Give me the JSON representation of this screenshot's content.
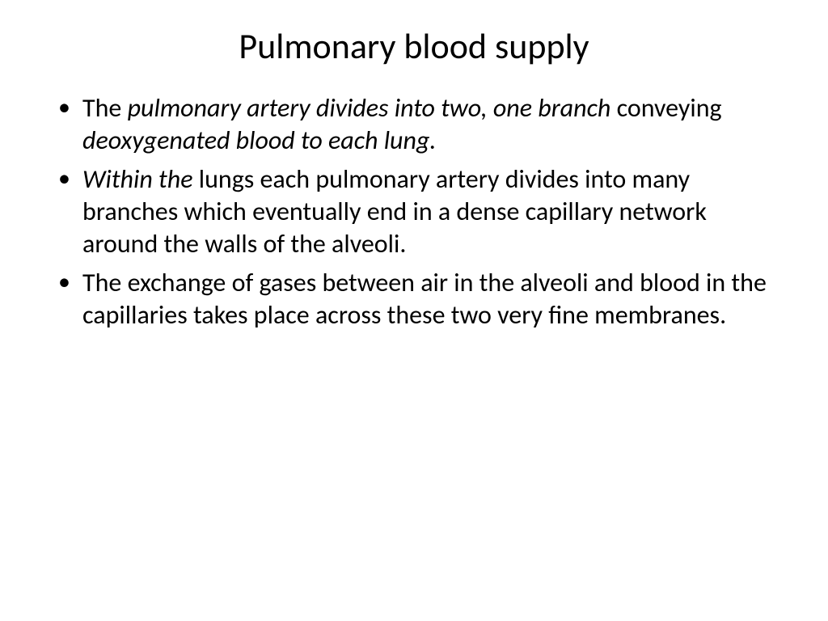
{
  "slide": {
    "title": "Pulmonary blood supply",
    "bullets": [
      {
        "segments": [
          {
            "text": "The ",
            "italic": false
          },
          {
            "text": "pulmonary artery divides into two, one branch ",
            "italic": true
          },
          {
            "text": "conveying ",
            "italic": false
          },
          {
            "text": "deoxygenated blood to each lung.",
            "italic": true
          }
        ]
      },
      {
        "segments": [
          {
            "text": "Within the ",
            "italic": true
          },
          {
            "text": "lungs each pulmonary artery divides into many branches which eventually end in a dense capillary network around the walls of the alveoli.",
            "italic": false
          }
        ]
      },
      {
        "segments": [
          {
            "text": "The exchange of gases between air in the alveoli and blood in the capillaries takes place across these two very fine membranes.",
            "italic": false
          }
        ]
      }
    ]
  },
  "style": {
    "background_color": "#ffffff",
    "text_color": "#000000",
    "title_fontsize": 44,
    "body_fontsize": 32,
    "font_family": "Calibri"
  }
}
